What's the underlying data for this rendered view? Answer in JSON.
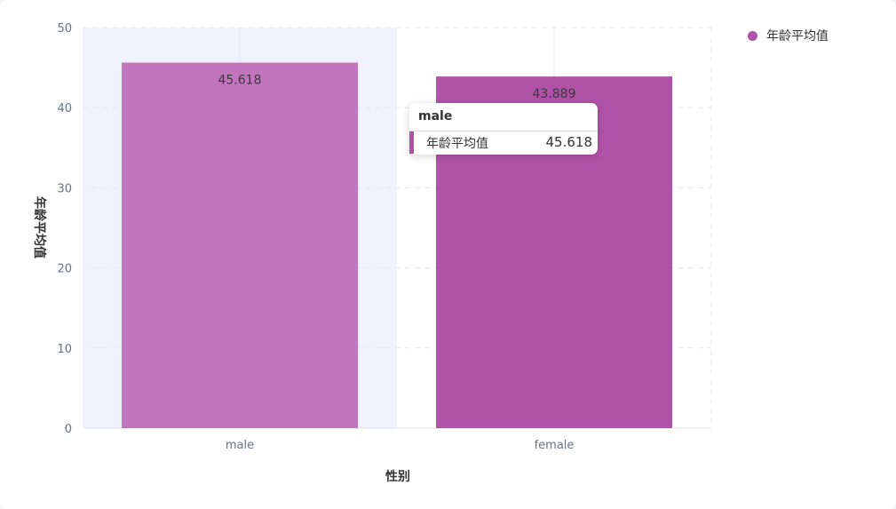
{
  "chart_data": {
    "type": "bar",
    "xlabel": "性别",
    "ylabel": "年龄平均值",
    "categories": [
      "male",
      "female"
    ],
    "series": [
      {
        "name": "年龄平均值",
        "values": [
          45.618,
          43.889
        ],
        "value_labels": [
          "45.618",
          "43.889"
        ]
      }
    ],
    "ylim": [
      0,
      50
    ],
    "yticks": [
      0,
      10,
      20,
      30,
      40,
      50
    ],
    "ytick_labels": [
      "0",
      "10",
      "20",
      "30",
      "40",
      "50"
    ],
    "grid": true,
    "legend_position": "top-right",
    "hovered_category_index": 0
  },
  "colors": {
    "bar_hover": "#c175bc",
    "bar": "#b052a8",
    "hover_band": "#f0f3fd",
    "grid": "#e6e8ee",
    "axis_text": "#6b7280",
    "axis_title": "#333333"
  },
  "tooltip": {
    "title": "male",
    "series_name": "年龄平均值",
    "value": "45.618"
  },
  "legend": {
    "label": "年龄平均值",
    "marker_color": "#b052a8"
  }
}
